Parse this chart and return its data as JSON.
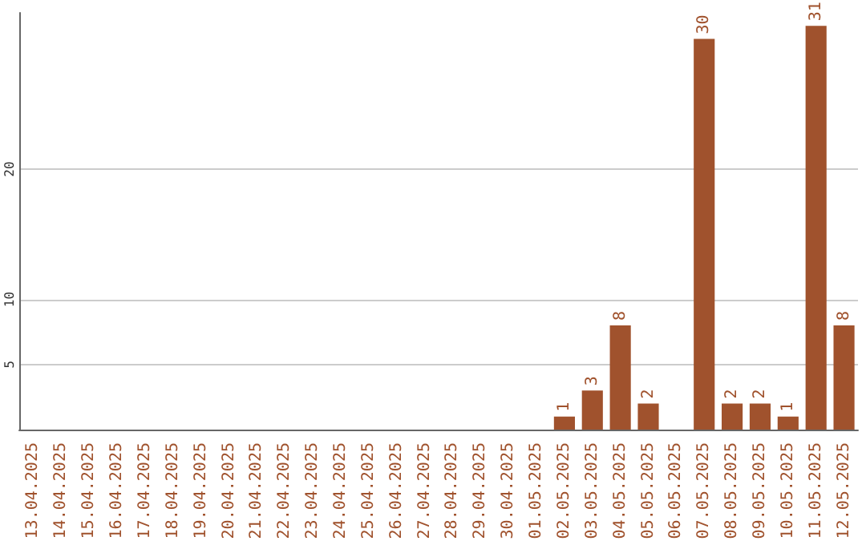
{
  "chart_data": {
    "type": "bar",
    "categories": [
      "13.04.2025",
      "14.04.2025",
      "15.04.2025",
      "16.04.2025",
      "17.04.2025",
      "18.04.2025",
      "19.04.2025",
      "20.04.2025",
      "21.04.2025",
      "22.04.2025",
      "23.04.2025",
      "24.04.2025",
      "25.04.2025",
      "26.04.2025",
      "27.04.2025",
      "28.04.2025",
      "29.04.2025",
      "30.04.2025",
      "01.05.2025",
      "02.05.2025",
      "03.05.2025",
      "04.05.2025",
      "05.05.2025",
      "06.05.2025",
      "07.05.2025",
      "08.05.2025",
      "09.05.2025",
      "10.05.2025",
      "11.05.2025",
      "12.05.2025"
    ],
    "values": [
      0,
      0,
      0,
      0,
      0,
      0,
      0,
      0,
      0,
      0,
      0,
      0,
      0,
      0,
      0,
      0,
      0,
      0,
      0,
      1,
      3,
      8,
      2,
      0,
      30,
      2,
      2,
      1,
      31,
      8
    ],
    "value_labels": [
      null,
      null,
      null,
      null,
      null,
      null,
      null,
      null,
      null,
      null,
      null,
      null,
      null,
      null,
      null,
      null,
      null,
      null,
      null,
      "1",
      "3",
      "8",
      "2",
      null,
      "30",
      "2",
      "2",
      "1",
      "31",
      "8"
    ],
    "color": "#a0522d",
    "ylim": [
      0,
      32
    ],
    "yticks": [
      5,
      10,
      20
    ],
    "grid": "y"
  }
}
